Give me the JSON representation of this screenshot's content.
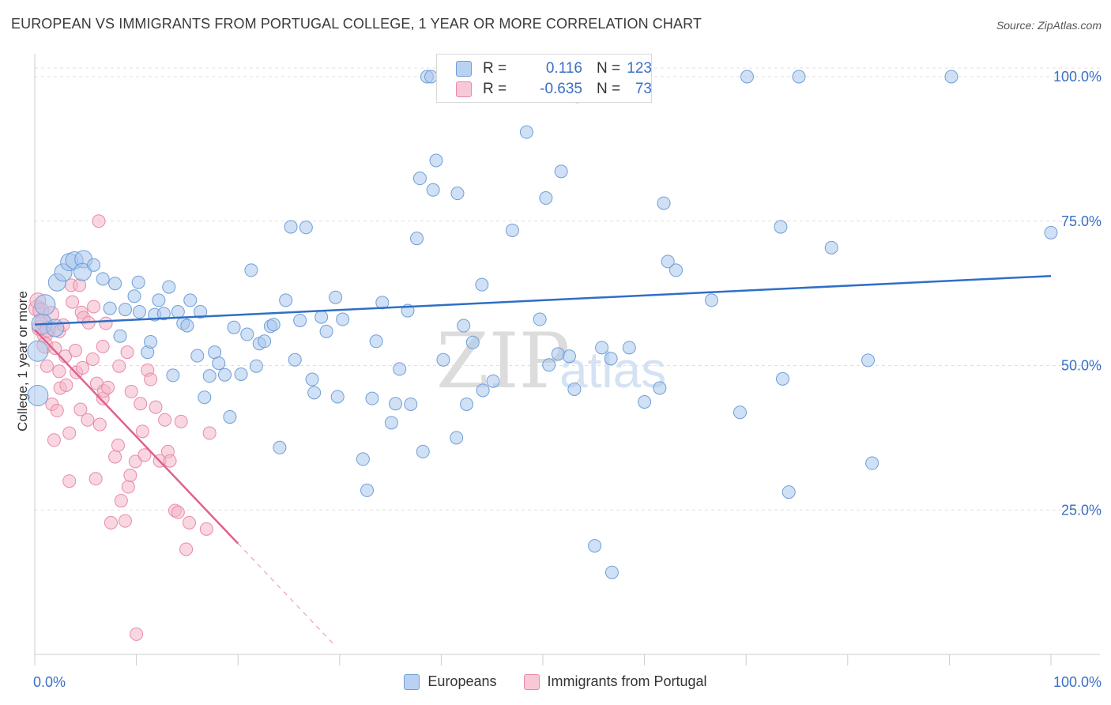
{
  "title": "EUROPEAN VS IMMIGRANTS FROM PORTUGAL COLLEGE, 1 YEAR OR MORE CORRELATION CHART",
  "source": "Source: ZipAtlas.com",
  "watermark": {
    "zip": "ZIP",
    "atlas": "atlas"
  },
  "stats": [
    {
      "r_label": "R =",
      "r_value": "0.116",
      "n_label": "N =",
      "n_value": "123"
    },
    {
      "r_label": "R =",
      "r_value": "-0.635",
      "n_label": "N =",
      "n_value": "73"
    }
  ],
  "chart_data": {
    "type": "scatter",
    "title": "EUROPEAN VS IMMIGRANTS FROM PORTUGAL COLLEGE, 1 YEAR OR MORE CORRELATION CHART",
    "xlabel": "",
    "ylabel": "College, 1 year or more",
    "xlim": [
      0,
      100
    ],
    "ylim": [
      0,
      104
    ],
    "x_tick_labels": [
      "0.0%",
      "100.0%"
    ],
    "y_ticks": [
      25,
      50,
      75,
      100
    ],
    "y_tick_labels": [
      "25.0%",
      "50.0%",
      "75.0%",
      "100.0%"
    ],
    "grid": true,
    "legend_position": "bottom",
    "colors": {
      "Europeans": {
        "fill": "#a9c6ec",
        "stroke": "#6f9fd8",
        "line": "#2f6fc6"
      },
      "Immigrants from Portugal": {
        "fill": "#f4b6c9",
        "stroke": "#e88aa8",
        "line": "#e0608e"
      }
    },
    "series": [
      {
        "name": "Europeans",
        "r": 0.116,
        "n": 123,
        "trend": {
          "x0": 0,
          "y0": 57.1,
          "x1": 100,
          "y1": 65.5
        },
        "points": [
          [
            0.3,
            44.8
          ],
          [
            0.3,
            52.5
          ],
          [
            0.7,
            57.2
          ],
          [
            1,
            60.5
          ],
          [
            2,
            56.5
          ],
          [
            2.2,
            64.4
          ],
          [
            2.8,
            66.1
          ],
          [
            3.4,
            67.9
          ],
          [
            3.9,
            68.2
          ],
          [
            4.8,
            68.4
          ],
          [
            4.7,
            66.2
          ],
          [
            5.8,
            67.4
          ],
          [
            6.7,
            65
          ],
          [
            7.9,
            64.2
          ],
          [
            8.4,
            55.1
          ],
          [
            7.4,
            59.9
          ],
          [
            8.9,
            59.7
          ],
          [
            9.8,
            62
          ],
          [
            10.2,
            64.4
          ],
          [
            10.3,
            59.3
          ],
          [
            11.1,
            52.3
          ],
          [
            11.4,
            54.1
          ],
          [
            11.8,
            58.8
          ],
          [
            12.2,
            61.3
          ],
          [
            12.7,
            59
          ],
          [
            13.2,
            63.6
          ],
          [
            13.6,
            48.3
          ],
          [
            14.1,
            59.3
          ],
          [
            14.6,
            57.3
          ],
          [
            15,
            56.9
          ],
          [
            15.3,
            61.3
          ],
          [
            16,
            51.7
          ],
          [
            16.3,
            59.3
          ],
          [
            16.7,
            44.5
          ],
          [
            17.2,
            48.2
          ],
          [
            17.7,
            52.3
          ],
          [
            18.1,
            50.4
          ],
          [
            18.7,
            48.4
          ],
          [
            19.2,
            41.1
          ],
          [
            19.6,
            56.6
          ],
          [
            20.3,
            48.5
          ],
          [
            20.9,
            55.4
          ],
          [
            21.3,
            66.5
          ],
          [
            21.8,
            49.9
          ],
          [
            22.1,
            53.8
          ],
          [
            22.6,
            54.2
          ],
          [
            23.2,
            56.8
          ],
          [
            23.5,
            57.1
          ],
          [
            24.1,
            35.8
          ],
          [
            24.7,
            61.3
          ],
          [
            25.2,
            74
          ],
          [
            25.6,
            51
          ],
          [
            26.1,
            57.8
          ],
          [
            26.7,
            73.9
          ],
          [
            27.3,
            47.6
          ],
          [
            27.5,
            45.3
          ],
          [
            28.2,
            58.4
          ],
          [
            28.7,
            55.9
          ],
          [
            29.6,
            61.8
          ],
          [
            29.8,
            44.6
          ],
          [
            30.3,
            58
          ],
          [
            32.3,
            33.8
          ],
          [
            32.7,
            28.4
          ],
          [
            33.2,
            44.3
          ],
          [
            33.6,
            54.2
          ],
          [
            34.2,
            60.9
          ],
          [
            35.1,
            40.1
          ],
          [
            35.5,
            43.4
          ],
          [
            35.9,
            49.4
          ],
          [
            36.7,
            59.5
          ],
          [
            37,
            43.3
          ],
          [
            37.6,
            72
          ],
          [
            37.9,
            82.4
          ],
          [
            38.2,
            35.1
          ],
          [
            38.6,
            100
          ],
          [
            39,
            100
          ],
          [
            39.2,
            80.4
          ],
          [
            39.5,
            85.5
          ],
          [
            40.2,
            51
          ],
          [
            41.4,
            100
          ],
          [
            41.5,
            37.5
          ],
          [
            41.6,
            79.8
          ],
          [
            42.2,
            56.9
          ],
          [
            42.5,
            43.3
          ],
          [
            42.8,
            96.7
          ],
          [
            43.1,
            54
          ],
          [
            44,
            64
          ],
          [
            44.1,
            45.7
          ],
          [
            45.1,
            47.3
          ],
          [
            46.3,
            100
          ],
          [
            47,
            73.4
          ],
          [
            48.4,
            90.4
          ],
          [
            49.7,
            58
          ],
          [
            50.3,
            79
          ],
          [
            50.6,
            50.1
          ],
          [
            51.5,
            52
          ],
          [
            51.8,
            83.6
          ],
          [
            52.6,
            51.6
          ],
          [
            53.1,
            45.9
          ],
          [
            53.4,
            96.6
          ],
          [
            55.1,
            18.8
          ],
          [
            55.8,
            53.1
          ],
          [
            56.7,
            51.2
          ],
          [
            56.8,
            14.2
          ],
          [
            58.5,
            53.1
          ],
          [
            60,
            43.7
          ],
          [
            61.5,
            46.1
          ],
          [
            61.9,
            78.1
          ],
          [
            62.3,
            68
          ],
          [
            63.1,
            66.5
          ],
          [
            66.6,
            61.3
          ],
          [
            69.4,
            41.9
          ],
          [
            70.1,
            100
          ],
          [
            73.4,
            74
          ],
          [
            73.6,
            47.7
          ],
          [
            74.2,
            28.1
          ],
          [
            75.2,
            100
          ],
          [
            78.4,
            70.4
          ],
          [
            82,
            50.9
          ],
          [
            82.4,
            33.1
          ],
          [
            90.2,
            100
          ],
          [
            100,
            73
          ]
        ]
      },
      {
        "name": "Immigrants from Portugal",
        "r": -0.635,
        "n": 73,
        "trend": {
          "x0": 0,
          "y0": 56.2,
          "x1": 20,
          "y1": 19.2
        },
        "trend_extension": {
          "x0": 20,
          "y0": 19.2,
          "x1": 29.5,
          "y1": 1.6
        },
        "points": [
          [
            0.2,
            59.9
          ],
          [
            0.3,
            61.2
          ],
          [
            0.5,
            56.5
          ],
          [
            0.6,
            59.5
          ],
          [
            0.8,
            57.5
          ],
          [
            1,
            55.4
          ],
          [
            1,
            53.5
          ],
          [
            1.2,
            49.9
          ],
          [
            1.3,
            56.3
          ],
          [
            1.6,
            58.9
          ],
          [
            1.7,
            43.3
          ],
          [
            1.9,
            37.1
          ],
          [
            2,
            53
          ],
          [
            2.2,
            42.2
          ],
          [
            2.4,
            55.9
          ],
          [
            2.4,
            49
          ],
          [
            2.5,
            46.1
          ],
          [
            2.8,
            57
          ],
          [
            3,
            51.6
          ],
          [
            3.1,
            46.6
          ],
          [
            3.4,
            38.3
          ],
          [
            3.4,
            30
          ],
          [
            3.6,
            63.9
          ],
          [
            3.7,
            61
          ],
          [
            4.1,
            48.8
          ],
          [
            4,
            52.6
          ],
          [
            4.4,
            63.9
          ],
          [
            4.5,
            42.4
          ],
          [
            4.6,
            59.2
          ],
          [
            4.7,
            49.6
          ],
          [
            4.8,
            58.3
          ],
          [
            5.2,
            40.6
          ],
          [
            5.3,
            57.4
          ],
          [
            5.7,
            51.1
          ],
          [
            5.8,
            60.2
          ],
          [
            6,
            30.4
          ],
          [
            6.1,
            46.9
          ],
          [
            6.3,
            75
          ],
          [
            6.4,
            39.8
          ],
          [
            6.7,
            44.3
          ],
          [
            6.7,
            53.3
          ],
          [
            6.8,
            45.6
          ],
          [
            7,
            57.3
          ],
          [
            7.2,
            46.2
          ],
          [
            7.5,
            22.8
          ],
          [
            7.9,
            34.2
          ],
          [
            8.2,
            36.2
          ],
          [
            8.3,
            49.9
          ],
          [
            8.5,
            26.6
          ],
          [
            8.9,
            23.1
          ],
          [
            9.1,
            52.3
          ],
          [
            9.2,
            29
          ],
          [
            9.4,
            31
          ],
          [
            9.5,
            45.5
          ],
          [
            9.9,
            33.4
          ],
          [
            10.4,
            43.4
          ],
          [
            10.6,
            38.6
          ],
          [
            10.8,
            34.5
          ],
          [
            11.1,
            49.2
          ],
          [
            11.4,
            47.6
          ],
          [
            11.9,
            42.8
          ],
          [
            12.3,
            33.5
          ],
          [
            12.8,
            40.6
          ],
          [
            13.1,
            35.1
          ],
          [
            13.3,
            33.5
          ],
          [
            13.8,
            24.9
          ],
          [
            14.1,
            24.6
          ],
          [
            14.4,
            40.3
          ],
          [
            14.9,
            18.2
          ],
          [
            15.2,
            22.8
          ],
          [
            16.9,
            21.7
          ],
          [
            17.2,
            38.3
          ],
          [
            10,
            3.5
          ]
        ]
      }
    ]
  }
}
